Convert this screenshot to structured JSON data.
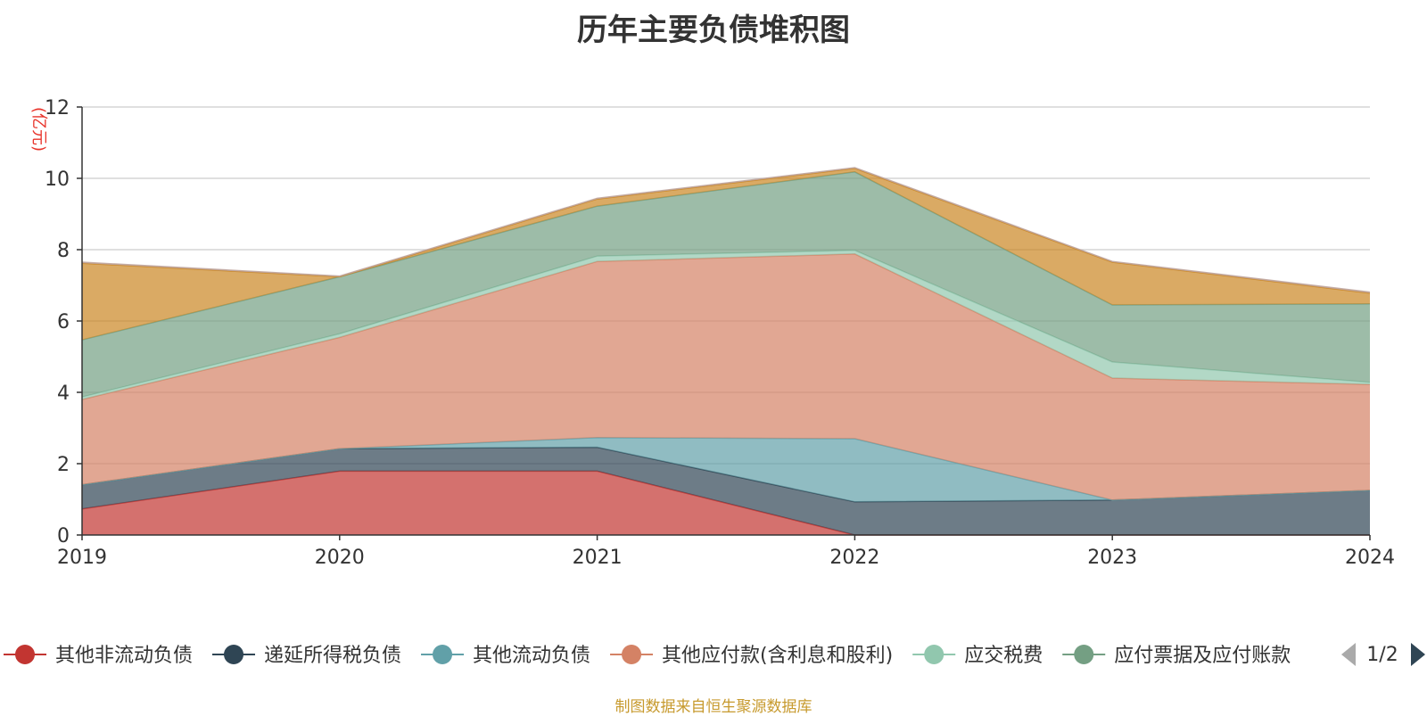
{
  "page": {
    "title": "历年主要负债堆积图",
    "source_note": "制图数据来自恒生聚源数据库"
  },
  "legend": {
    "pager_text": "1/2"
  },
  "chart_data": {
    "type": "area",
    "stacked": true,
    "title": "历年主要负债堆积图",
    "ylabel": "(亿元)",
    "xlabel": "",
    "ylim": [
      0,
      12
    ],
    "yticks": [
      0,
      2,
      4,
      6,
      8,
      10,
      12
    ],
    "grid": true,
    "legend_position": "bottom",
    "categories": [
      "2019",
      "2020",
      "2021",
      "2022",
      "2023",
      "2024"
    ],
    "series": [
      {
        "name": "其他非流动负债",
        "color": "#c23531",
        "values": [
          0.73,
          1.79,
          1.79,
          0.0,
          0.0,
          0.0
        ]
      },
      {
        "name": "递延所得税负债",
        "color": "#2f4554",
        "values": [
          0.68,
          0.63,
          0.67,
          0.93,
          0.98,
          1.25
        ]
      },
      {
        "name": "其他流动负债",
        "color": "#61a0a8",
        "values": [
          0.0,
          0.0,
          0.27,
          1.77,
          0.0,
          0.0
        ]
      },
      {
        "name": "其他应付款(含利息和股利)",
        "color": "#d48265",
        "values": [
          2.39,
          3.12,
          4.94,
          5.18,
          3.42,
          2.97
        ]
      },
      {
        "name": "应交税费",
        "color": "#91c7ae",
        "values": [
          0.07,
          0.1,
          0.15,
          0.1,
          0.45,
          0.06
        ]
      },
      {
        "name": "应付票据及应付账款",
        "color": "#749f83",
        "values": [
          1.6,
          1.6,
          1.4,
          2.2,
          1.6,
          2.2
        ]
      },
      {
        "name": "",
        "color": "#ca8622",
        "values": [
          2.15,
          0.0,
          0.2,
          0.1,
          1.2,
          0.3
        ]
      },
      {
        "name": "",
        "color": "#bda29a",
        "values": [
          0.03,
          0.02,
          0.02,
          0.02,
          0.02,
          0.03
        ]
      }
    ]
  }
}
